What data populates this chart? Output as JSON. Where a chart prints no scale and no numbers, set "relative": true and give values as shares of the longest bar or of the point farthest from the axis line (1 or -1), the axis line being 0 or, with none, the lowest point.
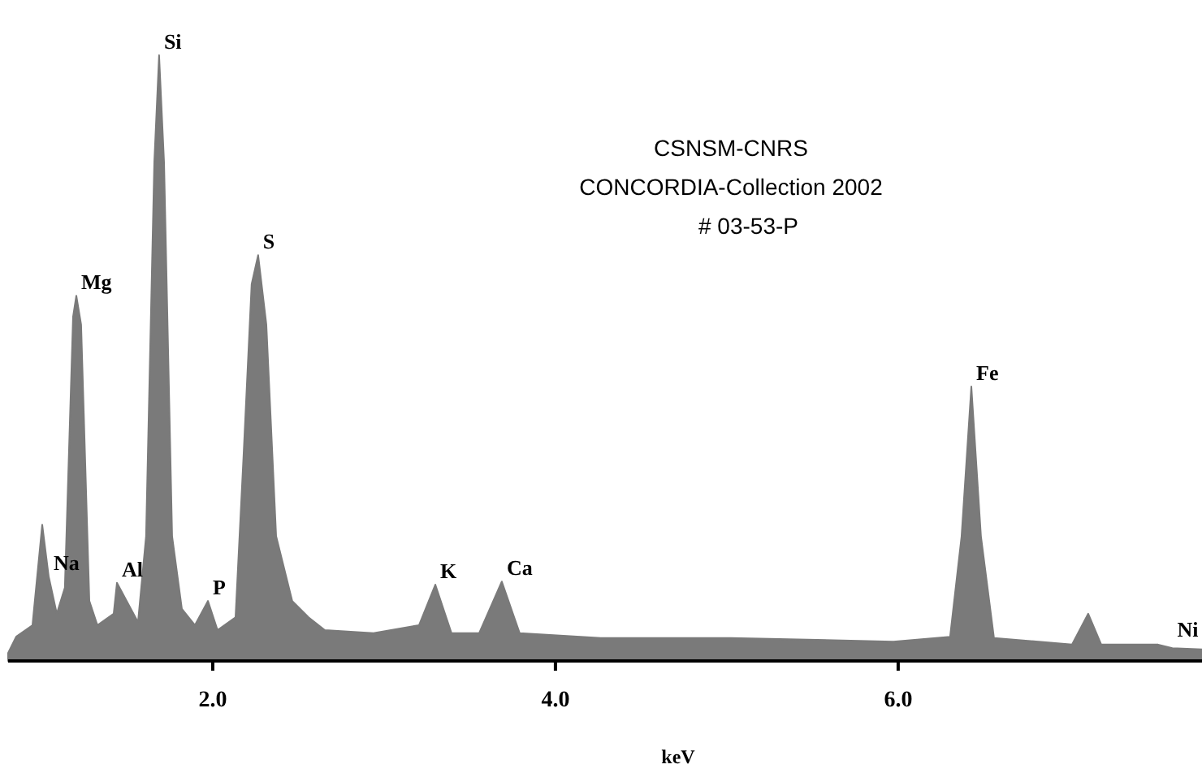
{
  "chart_data": {
    "type": "area",
    "relative": true,
    "xlabel": "keV",
    "x": [
      0.806,
      0.853,
      0.948,
      1.005,
      1.043,
      1.09,
      1.137,
      1.185,
      1.204,
      1.232,
      1.28,
      1.327,
      1.422,
      1.441,
      1.498,
      1.564,
      1.611,
      1.659,
      1.687,
      1.716,
      1.763,
      1.82,
      1.896,
      1.972,
      2.028,
      2.133,
      2.18,
      2.227,
      2.265,
      2.313,
      2.37,
      2.464,
      2.559,
      2.654,
      2.938,
      3.204,
      3.299,
      3.393,
      3.555,
      3.687,
      3.791,
      4.265,
      5.024,
      5.972,
      6.303,
      6.37,
      6.427,
      6.483,
      6.559,
      7.014,
      7.109,
      7.185,
      7.517,
      7.6,
      7.773
    ],
    "series": [
      {
        "color": "#7a7a7a",
        "values": [
          0.013,
          0.04,
          0.059,
          0.225,
          0.139,
          0.078,
          0.121,
          0.568,
          0.603,
          0.555,
          0.099,
          0.059,
          0.078,
          0.129,
          0.099,
          0.064,
          0.206,
          0.823,
          1.0,
          0.823,
          0.206,
          0.086,
          0.059,
          0.099,
          0.051,
          0.072,
          0.34,
          0.622,
          0.67,
          0.555,
          0.206,
          0.099,
          0.072,
          0.051,
          0.046,
          0.059,
          0.126,
          0.046,
          0.046,
          0.131,
          0.046,
          0.038,
          0.038,
          0.032,
          0.04,
          0.206,
          0.453,
          0.206,
          0.038,
          0.027,
          0.078,
          0.027,
          0.027,
          0.021,
          0.019
        ]
      }
    ],
    "xlim": [
      0.806,
      7.773
    ],
    "xticks": [
      {
        "value": 2,
        "label": "2.0"
      },
      {
        "value": 4,
        "label": "4.0"
      },
      {
        "value": 6,
        "label": "6.0"
      }
    ],
    "annotations": [
      {
        "text": "Mg",
        "x": 1.204,
        "y": 0.603
      },
      {
        "text": "Na",
        "x": 1.043,
        "y": 0.139
      },
      {
        "text": "Si",
        "x": 1.687,
        "y": 1.0
      },
      {
        "text": "Al",
        "x": 1.441,
        "y": 0.129
      },
      {
        "text": "P",
        "x": 1.972,
        "y": 0.099
      },
      {
        "text": "S",
        "x": 2.265,
        "y": 0.67
      },
      {
        "text": "K",
        "x": 3.299,
        "y": 0.126
      },
      {
        "text": "Ca",
        "x": 3.687,
        "y": 0.131
      },
      {
        "text": "Fe",
        "x": 6.427,
        "y": 0.453
      },
      {
        "text": "Ni",
        "x": 7.6,
        "y": 0.03
      },
      "CSNSM-CNRS",
      "CONCORDIA-Collection 2002",
      "# 03-53-P"
    ]
  }
}
